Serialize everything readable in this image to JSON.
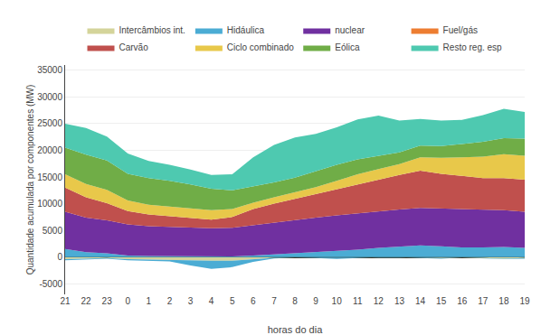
{
  "chart_data": {
    "type": "area",
    "stacked": true,
    "xlabel": "horas do dia",
    "ylabel": "Quantidade acumulada por componentes (MW)",
    "categories": [
      21,
      22,
      23,
      0,
      1,
      2,
      3,
      4,
      5,
      6,
      7,
      8,
      9,
      10,
      11,
      12,
      13,
      14,
      15,
      16,
      17,
      18,
      19
    ],
    "series": [
      {
        "name": "Intercâmbios int.",
        "color": "#d4d49a",
        "values": [
          -400,
          -300,
          -200,
          -400,
          -500,
          -500,
          -600,
          -700,
          -700,
          -400,
          -150,
          -100,
          -100,
          -150,
          -100,
          -50,
          -50,
          -100,
          -200,
          -100,
          -200,
          -300,
          -200
        ]
      },
      {
        "name": "Hidáulica",
        "color": "#4bacd4",
        "values": [
          1500,
          900,
          700,
          300,
          200,
          200,
          100,
          100,
          100,
          300,
          500,
          700,
          900,
          1100,
          1400,
          1700,
          2000,
          2200,
          2000,
          1800,
          1800,
          1900,
          1700
        ],
        "negative_values": [
          -200,
          -100,
          -100,
          -200,
          -250,
          -300,
          -1000,
          -1500,
          -1200,
          -500,
          -100,
          0,
          -100,
          -200,
          -100,
          0,
          0,
          -100,
          -100,
          0,
          -100,
          -100,
          -100
        ]
      },
      {
        "name": "nuclear",
        "color": "#7030a0",
        "values": [
          7000,
          6500,
          6200,
          5800,
          5600,
          5500,
          5400,
          5300,
          5400,
          5700,
          6000,
          6200,
          6500,
          6700,
          6800,
          6800,
          6900,
          7000,
          7100,
          7100,
          7000,
          6900,
          6800
        ]
      },
      {
        "name": "Fuel/gás",
        "color": "#ed7d31",
        "values": [
          0,
          0,
          0,
          0,
          0,
          0,
          0,
          0,
          0,
          0,
          0,
          0,
          0,
          0,
          0,
          0,
          0,
          0,
          0,
          0,
          0,
          0,
          0
        ]
      },
      {
        "name": "Carvão",
        "color": "#c0504d",
        "values": [
          4500,
          3800,
          3200,
          2500,
          2200,
          2000,
          1800,
          1600,
          2000,
          3000,
          3500,
          4000,
          4500,
          5000,
          5500,
          6000,
          6500,
          7000,
          6500,
          6300,
          6000,
          6000,
          6000
        ]
      },
      {
        "name": "Ciclo combinado",
        "color": "#e8c84a",
        "values": [
          2500,
          2500,
          2500,
          2000,
          1800,
          1800,
          1800,
          1800,
          1500,
          1200,
          1200,
          1200,
          1200,
          1500,
          1800,
          2000,
          2000,
          2500,
          3000,
          3500,
          4000,
          4500,
          4500
        ]
      },
      {
        "name": "Eólica",
        "color": "#70ad47",
        "values": [
          5000,
          5500,
          5500,
          5000,
          5000,
          4800,
          4500,
          4000,
          3500,
          3000,
          2800,
          2800,
          3000,
          3000,
          2800,
          2500,
          2200,
          2200,
          2200,
          2500,
          2800,
          3000,
          3200
        ]
      },
      {
        "name": "Resto reg. esp",
        "color": "#4ec9b0",
        "values": [
          4500,
          5000,
          4500,
          3800,
          3200,
          3000,
          2800,
          2600,
          3000,
          5500,
          7000,
          7500,
          7000,
          7000,
          7500,
          7500,
          6000,
          5000,
          4800,
          4500,
          5000,
          5500,
          5000
        ]
      }
    ],
    "ylim": [
      -7000,
      36000
    ],
    "yticks": [
      -5000,
      0,
      5000,
      10000,
      15000,
      20000,
      25000,
      30000,
      35000
    ],
    "grid": "y",
    "legend": "top"
  }
}
